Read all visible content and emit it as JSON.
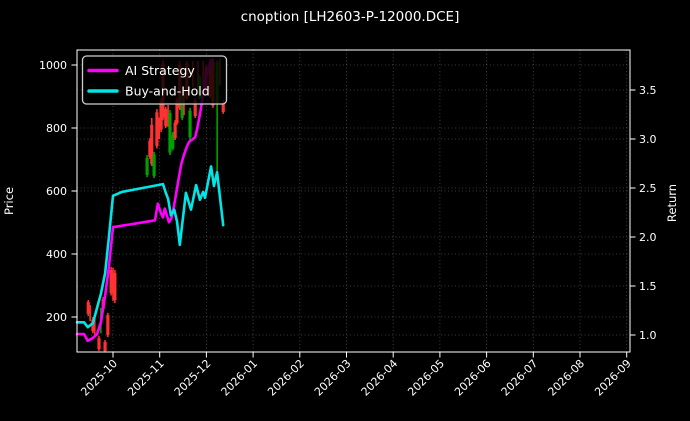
{
  "colors": {
    "background": "#000000",
    "text": "#FFFFFF",
    "spine": "#FFFFFF",
    "grid": "#AAAAAA",
    "ai_strategy": "#FF00FF",
    "buy_and_hold": "#00E5E5",
    "candle_up": "#00A000",
    "candle_down": "#FF3232"
  },
  "chart_data": {
    "type": "candlestick",
    "title": "cnoption [LH2603-P-12000.DCE]",
    "x_axis": {
      "tick_labels": [
        "2025-10",
        "2025-11",
        "2025-12",
        "2026-01",
        "2026-02",
        "2026-03",
        "2026-04",
        "2026-05",
        "2026-06",
        "2026-07",
        "2026-08",
        "2026-09"
      ],
      "label_rotation_deg": 45,
      "x_unit": "months from 2025-10 tick"
    },
    "y_left": {
      "label": "Price",
      "ticks": [
        200,
        400,
        600,
        800,
        1000
      ],
      "range": [
        89,
        1048
      ]
    },
    "y_right": {
      "label": "Return",
      "ticks": [
        "1.0",
        "1.5",
        "2.0",
        "2.5",
        "3.0",
        "3.5"
      ],
      "range": [
        0.83,
        3.91
      ]
    },
    "grid": true,
    "legend": {
      "position": "upper-left",
      "items": [
        {
          "label": "AI Strategy",
          "color": "#FF00FF"
        },
        {
          "label": "Buy-and-Hold",
          "color": "#00E5E5"
        }
      ]
    },
    "series": [
      {
        "name": "AI Strategy",
        "axis": "right",
        "color": "#FF00FF",
        "points": [
          [
            -0.77,
            1.01
          ],
          [
            -0.62,
            1.01
          ],
          [
            -0.54,
            0.94
          ],
          [
            -0.43,
            0.97
          ],
          [
            -0.34,
            1.01
          ],
          [
            -0.26,
            1.13
          ],
          [
            -0.17,
            1.4
          ],
          [
            -0.09,
            1.69
          ],
          [
            0.0,
            2.1
          ],
          [
            0.9,
            2.17
          ],
          [
            0.96,
            2.34
          ],
          [
            1.03,
            2.24
          ],
          [
            1.07,
            2.2
          ],
          [
            1.11,
            2.29
          ],
          [
            1.2,
            2.15
          ],
          [
            1.26,
            2.2
          ],
          [
            1.33,
            2.38
          ],
          [
            1.39,
            2.55
          ],
          [
            1.46,
            2.74
          ],
          [
            1.52,
            2.84
          ],
          [
            1.58,
            2.92
          ],
          [
            1.63,
            2.97
          ],
          [
            1.71,
            3.0
          ],
          [
            1.76,
            3.02
          ],
          [
            1.8,
            3.1
          ],
          [
            1.86,
            3.25
          ],
          [
            1.93,
            3.45
          ],
          [
            1.99,
            3.62
          ],
          [
            2.05,
            3.74
          ],
          [
            2.1,
            3.79
          ],
          [
            2.14,
            3.81
          ]
        ]
      },
      {
        "name": "Buy-and-Hold",
        "axis": "right",
        "color": "#00E5E5",
        "points": [
          [
            -0.77,
            1.13
          ],
          [
            -0.62,
            1.13
          ],
          [
            -0.54,
            1.08
          ],
          [
            -0.43,
            1.12
          ],
          [
            -0.34,
            1.28
          ],
          [
            -0.26,
            1.42
          ],
          [
            -0.17,
            1.63
          ],
          [
            -0.09,
            1.99
          ],
          [
            0.0,
            2.42
          ],
          [
            0.19,
            2.46
          ],
          [
            1.07,
            2.54
          ],
          [
            1.13,
            2.45
          ],
          [
            1.18,
            2.39
          ],
          [
            1.24,
            2.22
          ],
          [
            1.31,
            2.28
          ],
          [
            1.37,
            2.16
          ],
          [
            1.43,
            1.92
          ],
          [
            1.56,
            2.45
          ],
          [
            1.67,
            2.28
          ],
          [
            1.78,
            2.53
          ],
          [
            1.86,
            2.38
          ],
          [
            1.93,
            2.46
          ],
          [
            1.97,
            2.4
          ],
          [
            2.1,
            2.72
          ],
          [
            2.16,
            2.52
          ],
          [
            2.23,
            2.66
          ],
          [
            2.36,
            2.12
          ]
        ]
      }
    ],
    "candles": {
      "columns": [
        "x_month",
        "low",
        "high",
        "body_low",
        "body_high",
        "direction"
      ],
      "rows": [
        [
          -0.53,
          203,
          254,
          210,
          248,
          "d"
        ],
        [
          -0.49,
          187,
          238,
          null,
          null,
          "d"
        ],
        [
          -0.43,
          148,
          200,
          155,
          192,
          "d"
        ],
        [
          -0.39,
          140,
          194,
          null,
          null,
          "d"
        ],
        [
          -0.3,
          92,
          140,
          98,
          133,
          "d"
        ],
        [
          -0.26,
          148,
          229,
          null,
          null,
          "u"
        ],
        [
          -0.21,
          222,
          264,
          226,
          257,
          "d"
        ],
        [
          -0.17,
          87,
          127,
          92,
          121,
          "d"
        ],
        [
          -0.11,
          136,
          213,
          143,
          206,
          "d"
        ],
        [
          -0.04,
          268,
          359,
          276,
          349,
          "d"
        ],
        [
          0.0,
          251,
          356,
          null,
          null,
          "d"
        ],
        [
          0.04,
          244,
          349,
          254,
          340,
          "d"
        ],
        [
          0.73,
          644,
          714,
          651,
          705,
          "u"
        ],
        [
          0.79,
          702,
          768,
          708,
          760,
          "d"
        ],
        [
          0.83,
          679,
          832,
          686,
          810,
          "d"
        ],
        [
          0.88,
          641,
          724,
          648,
          716,
          "u"
        ],
        [
          0.94,
          735,
          860,
          743,
          850,
          "d"
        ],
        [
          0.99,
          765,
          833,
          null,
          null,
          "d"
        ],
        [
          1.03,
          787,
          895,
          795,
          886,
          "d"
        ],
        [
          1.07,
          825,
          1016,
          833,
          1005,
          "d"
        ],
        [
          1.13,
          800,
          867,
          806,
          860,
          "d"
        ],
        [
          1.18,
          803,
          873,
          null,
          null,
          "d"
        ],
        [
          1.22,
          714,
          857,
          722,
          848,
          "u"
        ],
        [
          1.28,
          729,
          787,
          735,
          779,
          "u"
        ],
        [
          1.33,
          762,
          825,
          768,
          817,
          "d"
        ],
        [
          1.37,
          810,
          895,
          816,
          886,
          "d"
        ],
        [
          1.43,
          857,
          1013,
          864,
          1000,
          "d"
        ],
        [
          1.48,
          825,
          906,
          832,
          898,
          "u"
        ],
        [
          1.52,
          841,
          921,
          null,
          null,
          "d"
        ],
        [
          1.58,
          889,
          1013,
          895,
          1005,
          "d"
        ],
        [
          1.65,
          762,
          864,
          770,
          855,
          "u"
        ],
        [
          1.71,
          929,
          1013,
          null,
          null,
          "d"
        ],
        [
          1.76,
          832,
          895,
          838,
          887,
          "d"
        ],
        [
          1.82,
          905,
          1013,
          null,
          null,
          "d"
        ],
        [
          1.86,
          889,
          968,
          895,
          960,
          "u"
        ],
        [
          1.93,
          921,
          1013,
          null,
          null,
          "d"
        ],
        [
          1.99,
          905,
          1000,
          911,
          991,
          "d"
        ],
        [
          2.08,
          895,
          1019,
          902,
          1010,
          "d"
        ],
        [
          2.14,
          864,
          1019,
          871,
          1010,
          "d"
        ],
        [
          2.23,
          651,
          1016,
          879,
          1010,
          "u"
        ],
        [
          2.29,
          935,
          1019,
          null,
          null,
          "d"
        ],
        [
          2.36,
          845,
          889,
          851,
          882,
          "d"
        ]
      ]
    }
  }
}
